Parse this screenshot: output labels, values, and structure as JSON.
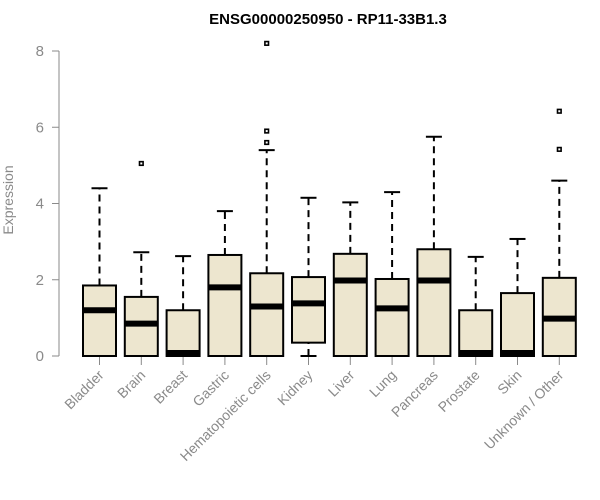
{
  "chart_data": {
    "type": "boxplot",
    "title": "ENSG00000250950 - RP11-33B1.3",
    "xlabel": "",
    "ylabel": "Expression",
    "ylim": [
      0,
      8
    ],
    "yticks": [
      0,
      2,
      4,
      6,
      8
    ],
    "categories": [
      "Bladder",
      "Brain",
      "Breast",
      "Gastric",
      "Hematopoietic cells",
      "Kidney",
      "Liver",
      "Lung",
      "Pancreas",
      "Prostate",
      "Skin",
      "Unknown / Other"
    ],
    "boxes": [
      {
        "category": "Bladder",
        "min": 0,
        "q1": 0,
        "median": 1.2,
        "q3": 1.85,
        "max": 4.4,
        "outliers": []
      },
      {
        "category": "Brain",
        "min": 0,
        "q1": 0,
        "median": 0.85,
        "q3": 1.55,
        "max": 2.72,
        "outliers": [
          5.05
        ]
      },
      {
        "category": "Breast",
        "min": 0,
        "q1": 0,
        "median": 0.02,
        "q3": 1.2,
        "max": 2.62,
        "outliers": []
      },
      {
        "category": "Gastric",
        "min": 0,
        "q1": 0,
        "median": 1.8,
        "q3": 2.65,
        "max": 3.8,
        "outliers": []
      },
      {
        "category": "Hematopoietic cells",
        "min": 0,
        "q1": 0,
        "median": 1.3,
        "q3": 2.17,
        "max": 5.4,
        "outliers": [
          5.6,
          5.9,
          8.2
        ]
      },
      {
        "category": "Kidney",
        "min": 0,
        "q1": 0.35,
        "median": 1.38,
        "q3": 2.07,
        "max": 4.15,
        "outliers": []
      },
      {
        "category": "Liver",
        "min": 0,
        "q1": 0,
        "median": 1.98,
        "q3": 2.68,
        "max": 4.03,
        "outliers": []
      },
      {
        "category": "Lung",
        "min": 0,
        "q1": 0,
        "median": 1.25,
        "q3": 2.02,
        "max": 4.3,
        "outliers": []
      },
      {
        "category": "Pancreas",
        "min": 0,
        "q1": 0,
        "median": 1.98,
        "q3": 2.8,
        "max": 5.75,
        "outliers": []
      },
      {
        "category": "Prostate",
        "min": 0,
        "q1": 0,
        "median": 0.02,
        "q3": 1.2,
        "max": 2.6,
        "outliers": []
      },
      {
        "category": "Skin",
        "min": 0,
        "q1": 0,
        "median": 0.02,
        "q3": 1.65,
        "max": 3.07,
        "outliers": []
      },
      {
        "category": "Unknown / Other",
        "min": 0,
        "q1": 0,
        "median": 0.98,
        "q3": 2.05,
        "max": 4.6,
        "outliers": [
          5.42,
          6.42
        ]
      }
    ],
    "grid": false,
    "legend": "none"
  },
  "colors": {
    "box_fill": "#ede6cf",
    "stroke": "#000000",
    "axis_text": "#8a8a8a"
  }
}
